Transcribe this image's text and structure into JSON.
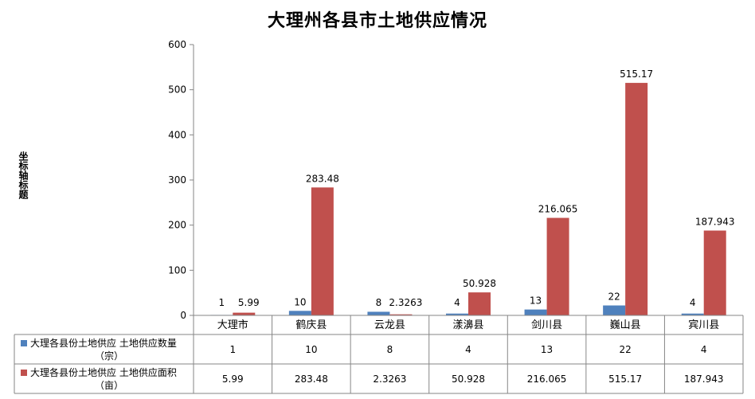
{
  "chart_data": {
    "type": "bar",
    "title": "大理州各县市土地供应情况",
    "ylabel": "坐标轴标题",
    "xlabel": "",
    "ylim": [
      0,
      600
    ],
    "yticks": [
      0,
      100,
      200,
      300,
      400,
      500,
      600
    ],
    "grid": false,
    "legend": "data-table-left",
    "categories": [
      "大理市",
      "鹤庆县",
      "云龙县",
      "漾濞县",
      "剑川县",
      "巍山县",
      "宾川县"
    ],
    "series": [
      {
        "name": "大理各县份土地供应 土地供应数量（宗）",
        "name_lines": [
          "大理各县份土地供应 土地供应数量",
          "（宗）"
        ],
        "color": "#4F81BD",
        "values": [
          1,
          10,
          8,
          4,
          13,
          22,
          4
        ],
        "labels": [
          "1",
          "10",
          "8",
          "4",
          "13",
          "22",
          "4"
        ]
      },
      {
        "name": "大理各县份土地供应 土地供应面积（亩）",
        "name_lines": [
          "大理各县份土地供应 土地供应面积",
          "（亩）"
        ],
        "color": "#C0504D",
        "values": [
          5.99,
          283.48,
          2.3263,
          50.928,
          216.065,
          515.17,
          187.943
        ],
        "labels": [
          "5.99",
          "283.48",
          "2.3263",
          "50.928",
          "216.065",
          "515.17",
          "187.943"
        ]
      }
    ]
  }
}
